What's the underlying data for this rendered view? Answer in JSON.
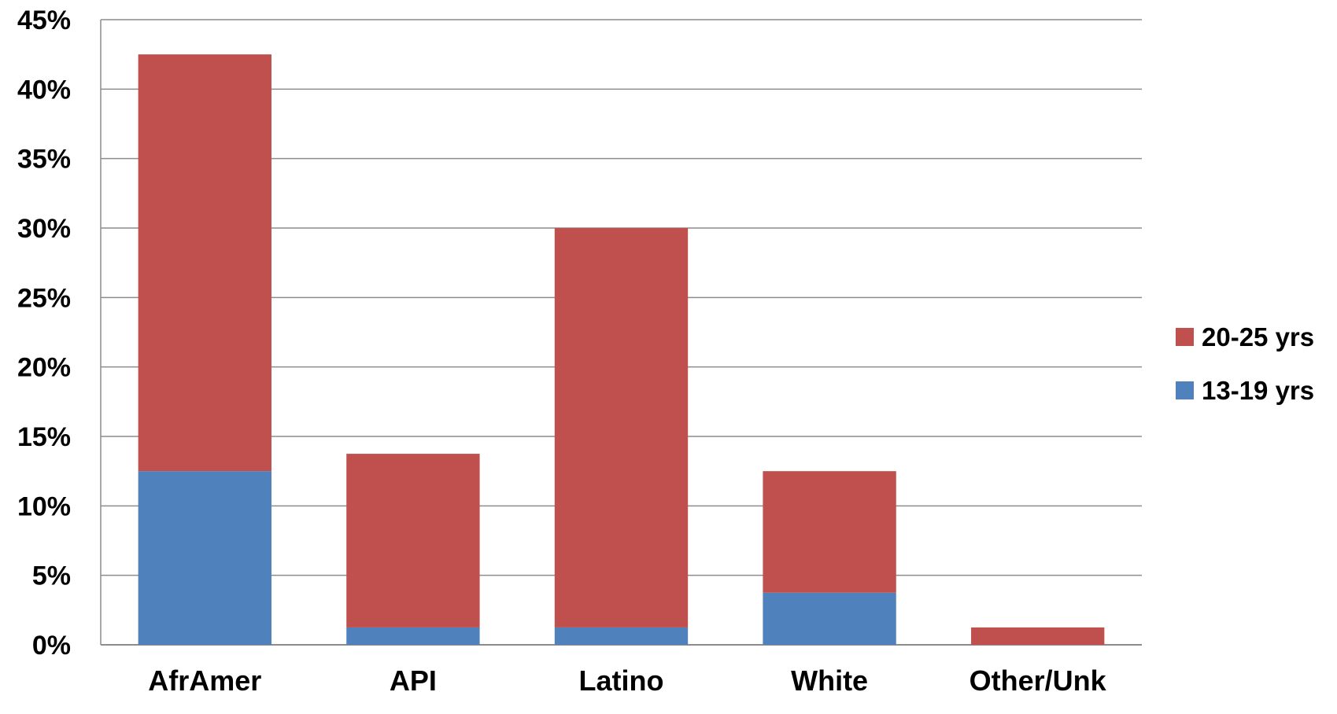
{
  "chart_data": {
    "type": "bar",
    "stacked": true,
    "categories": [
      "AfrAmer",
      "API",
      "Latino",
      "White",
      "Other/Unk"
    ],
    "series": [
      {
        "name": "13-19 yrs",
        "color": "#4F81BD",
        "values": [
          12.5,
          1.25,
          1.25,
          3.75,
          0
        ]
      },
      {
        "name": "20-25 yrs",
        "color": "#C0504D",
        "values": [
          30,
          12.5,
          28.75,
          8.75,
          1.25
        ]
      }
    ],
    "yticks": [
      "0%",
      "5%",
      "10%",
      "15%",
      "20%",
      "25%",
      "30%",
      "35%",
      "40%",
      "45%"
    ],
    "ylim": [
      0,
      45
    ],
    "grid": true,
    "legend_position": "right"
  }
}
